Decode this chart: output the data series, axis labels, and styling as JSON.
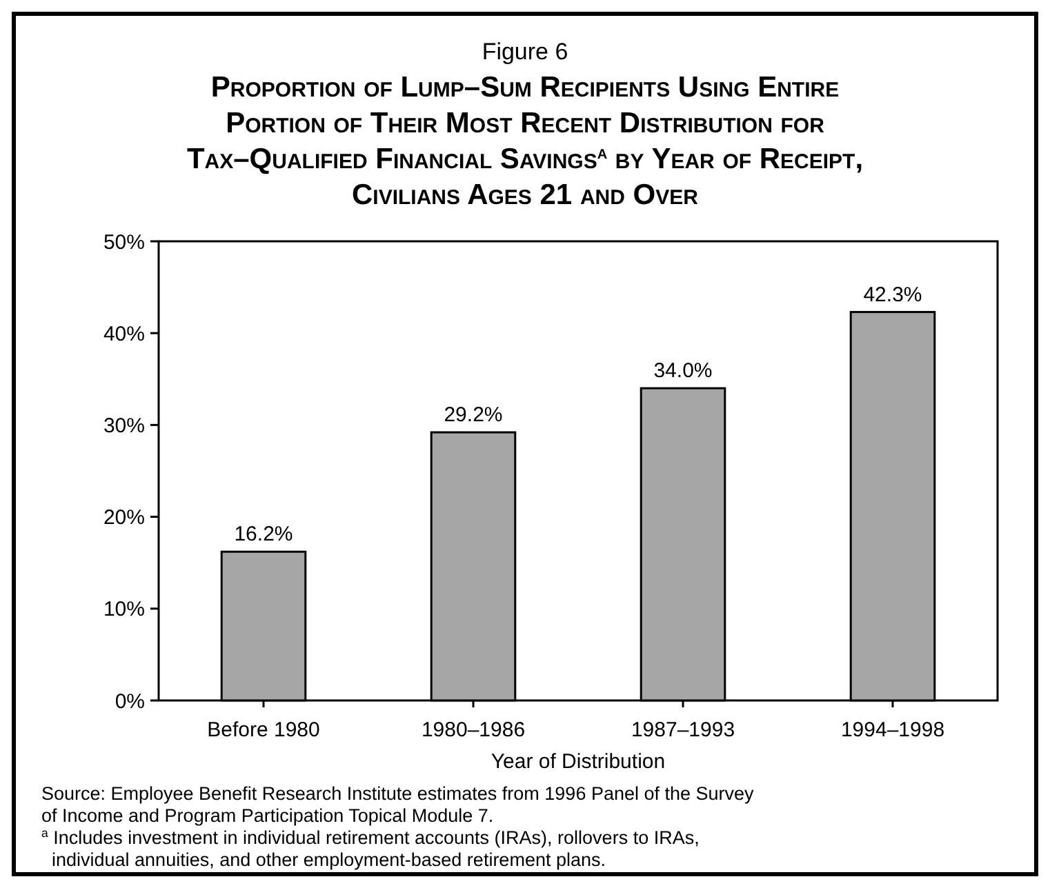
{
  "chart_data": {
    "type": "bar",
    "subtitle": "Figure 6",
    "title": "Proportion of Lump–Sum Recipients Using Entire\nPortion of Their Most Recent Distribution for\nTax–Qualified Financial Savings$^{a}$ by Year of Receipt,\nCivilians Ages 21 and Over",
    "categories": [
      "Before 1980",
      "1980–1986",
      "1987–1993",
      "1994–1998"
    ],
    "values": [
      16.2,
      29.2,
      34.0,
      42.3
    ],
    "value_labels": [
      "16.2%",
      "29.2%",
      "34.0%",
      "42.3%"
    ],
    "color": "#a6a6a6",
    "ylim": [
      0,
      50
    ],
    "yticks": [
      {
        "value": 0,
        "label": "0%"
      },
      {
        "value": 10,
        "label": "10%"
      },
      {
        "value": 20,
        "label": "20%"
      },
      {
        "value": 30,
        "label": "30%"
      },
      {
        "value": 40,
        "label": "40%"
      },
      {
        "value": 50,
        "label": "50%"
      }
    ],
    "xlabel": "Year of Distribution",
    "grid": false,
    "annotations": [
      "Source: Employee Benefit Research Institute estimates from 1996 Panel of the Survey\nof Income and Program Participation Topical Module 7.",
      "$^{a}$ Includes investment in individual retirement accounts (IRAs), rollovers to IRAs,\n  individual annuities, and other employment-based retirement plans."
    ]
  }
}
